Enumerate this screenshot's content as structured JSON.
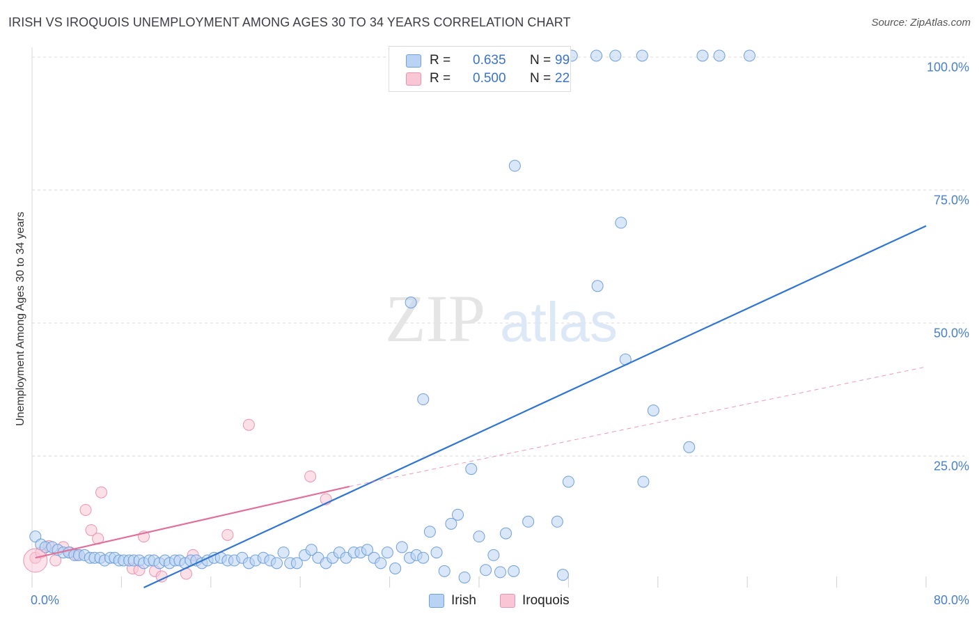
{
  "title": "IRISH VS IROQUOIS UNEMPLOYMENT AMONG AGES 30 TO 34 YEARS CORRELATION CHART",
  "source": "Source: ZipAtlas.com",
  "colors": {
    "irish_fill": "#b9d3f4",
    "irish_stroke": "#6f9fdc",
    "irish_line": "#2f74d0",
    "iroquois_fill": "#f9c6d5",
    "iroquois_stroke": "#eb93ae",
    "iroquois_line": "#e0709a",
    "grid": "#d9d9d9",
    "axis_label": "#4a7fc9"
  },
  "stats": [
    {
      "r_label": "R =",
      "r_value": "0.635",
      "n_label": "N =",
      "n_value": "99"
    },
    {
      "r_label": "R =",
      "r_value": "0.500",
      "n_label": "N =",
      "n_value": "22"
    }
  ],
  "legend": [
    "Irish",
    "Iroquois"
  ],
  "chart_data": {
    "type": "scatter",
    "title": "IRISH VS IROQUOIS UNEMPLOYMENT AMONG AGES 30 TO 34 YEARS CORRELATION CHART",
    "xlabel": "",
    "ylabel": "Unemployment Among Ages 30 to 34 years",
    "xlim": [
      0,
      80
    ],
    "ylim": [
      0,
      100
    ],
    "y_tick_labels": [
      "100.0%",
      "75.0%",
      "50.0%",
      "25.0%"
    ],
    "y_tick_values": [
      100,
      75,
      50,
      25
    ],
    "x_tick_labels": [
      "0.0%",
      "80.0%"
    ],
    "x_tick_values": [
      0,
      80
    ],
    "grid": true,
    "legend_position": "bottom",
    "watermark": "ZIPatlas",
    "series": [
      {
        "name": "Irish",
        "R": 0.635,
        "N": 99,
        "trend": {
          "x": [
            10,
            80
          ],
          "y": [
            0,
            68
          ]
        },
        "points": [
          [
            0.3,
            9.6
          ],
          [
            0.8,
            8.1
          ],
          [
            1.2,
            7.6
          ],
          [
            1.8,
            7.6
          ],
          [
            2.3,
            7.1
          ],
          [
            2.8,
            6.6
          ],
          [
            3.3,
            6.6
          ],
          [
            3.8,
            6.1
          ],
          [
            4.2,
            6.1
          ],
          [
            4.7,
            6.1
          ],
          [
            5.2,
            5.6
          ],
          [
            5.6,
            5.6
          ],
          [
            6.1,
            5.6
          ],
          [
            6.5,
            5.1
          ],
          [
            7.0,
            5.6
          ],
          [
            7.4,
            5.6
          ],
          [
            7.8,
            5.1
          ],
          [
            8.2,
            5.1
          ],
          [
            8.7,
            5.1
          ],
          [
            9.1,
            5.1
          ],
          [
            9.6,
            5.1
          ],
          [
            10.0,
            4.6
          ],
          [
            10.5,
            5.1
          ],
          [
            10.9,
            5.1
          ],
          [
            11.4,
            4.6
          ],
          [
            11.9,
            5.1
          ],
          [
            12.3,
            4.6
          ],
          [
            12.8,
            5.1
          ],
          [
            13.2,
            5.1
          ],
          [
            13.7,
            4.6
          ],
          [
            14.2,
            5.1
          ],
          [
            14.7,
            5.1
          ],
          [
            15.2,
            4.6
          ],
          [
            15.7,
            5.1
          ],
          [
            16.3,
            5.6
          ],
          [
            16.9,
            5.6
          ],
          [
            17.5,
            5.1
          ],
          [
            18.1,
            5.1
          ],
          [
            18.8,
            5.6
          ],
          [
            19.4,
            4.6
          ],
          [
            20.0,
            5.1
          ],
          [
            20.7,
            5.6
          ],
          [
            21.3,
            5.1
          ],
          [
            21.9,
            4.6
          ],
          [
            22.5,
            6.6
          ],
          [
            23.1,
            4.6
          ],
          [
            23.7,
            4.6
          ],
          [
            24.4,
            6.1
          ],
          [
            25.0,
            7.1
          ],
          [
            25.6,
            5.6
          ],
          [
            26.3,
            4.6
          ],
          [
            26.9,
            5.6
          ],
          [
            27.5,
            6.6
          ],
          [
            28.1,
            5.6
          ],
          [
            28.8,
            6.6
          ],
          [
            29.4,
            6.6
          ],
          [
            30.0,
            7.1
          ],
          [
            30.6,
            5.6
          ],
          [
            31.2,
            4.6
          ],
          [
            31.8,
            6.6
          ],
          [
            32.5,
            3.6
          ],
          [
            33.1,
            7.6
          ],
          [
            33.8,
            5.6
          ],
          [
            34.4,
            6.1
          ],
          [
            35.0,
            5.6
          ],
          [
            35.6,
            10.5
          ],
          [
            36.2,
            6.6
          ],
          [
            36.9,
            3.1
          ],
          [
            37.5,
            12.0
          ],
          [
            38.1,
            13.7
          ],
          [
            38.7,
            1.9
          ],
          [
            39.3,
            22.3
          ],
          [
            40.0,
            9.6
          ],
          [
            40.6,
            3.3
          ],
          [
            41.3,
            6.1
          ],
          [
            41.9,
            2.9
          ],
          [
            42.4,
            10.2
          ],
          [
            43.1,
            3.1
          ],
          [
            44.4,
            12.4
          ],
          [
            47.0,
            12.4
          ],
          [
            47.5,
            2.4
          ],
          [
            48.0,
            19.9
          ],
          [
            50.6,
            56.7
          ],
          [
            53.1,
            42.9
          ],
          [
            54.7,
            19.9
          ],
          [
            55.6,
            33.3
          ],
          [
            58.8,
            26.4
          ],
          [
            60.0,
            100
          ],
          [
            35.0,
            35.4
          ],
          [
            33.9,
            53.6
          ],
          [
            43.2,
            79.3
          ],
          [
            52.7,
            68.6
          ],
          [
            42.5,
            100
          ],
          [
            48.3,
            100
          ],
          [
            50.5,
            100
          ],
          [
            54.6,
            100
          ],
          [
            52.2,
            100
          ],
          [
            61.5,
            100
          ],
          [
            64.2,
            100
          ]
        ]
      },
      {
        "name": "Iroquois",
        "R": 0.5,
        "N": 22,
        "trend": {
          "x": [
            0.3,
            28.4
          ],
          "y": [
            5.6,
            19.0
          ]
        },
        "trend_dashed": {
          "x": [
            28.4,
            80
          ],
          "y": [
            19.0,
            41.5
          ]
        },
        "points": [
          [
            0.3,
            5.6
          ],
          [
            0.8,
            6.6
          ],
          [
            1.5,
            7.8
          ],
          [
            2.1,
            5.1
          ],
          [
            2.8,
            7.6
          ],
          [
            3.4,
            6.6
          ],
          [
            4.0,
            6.1
          ],
          [
            4.8,
            14.6
          ],
          [
            5.3,
            10.8
          ],
          [
            5.9,
            9.2
          ],
          [
            6.2,
            17.9
          ],
          [
            9.0,
            3.6
          ],
          [
            10.0,
            9.6
          ],
          [
            11.0,
            3.1
          ],
          [
            11.6,
            2.1
          ],
          [
            13.8,
            2.6
          ],
          [
            14.4,
            6.1
          ],
          [
            17.5,
            9.9
          ],
          [
            19.4,
            30.6
          ],
          [
            24.9,
            20.9
          ],
          [
            26.3,
            16.6
          ],
          [
            9.6,
            3.3
          ]
        ]
      }
    ]
  }
}
